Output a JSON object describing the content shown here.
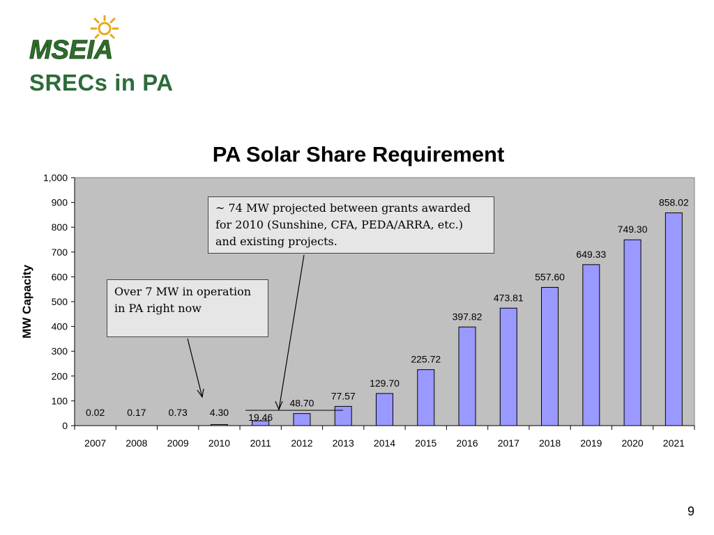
{
  "slide": {
    "logo_text": "MSEIA",
    "title": "SRECs in PA",
    "page_number": "9",
    "colors": {
      "title_green": "#2e6b3a",
      "logo_green": "#2f6e2b",
      "sun_gold": "#e8a81c",
      "bar_fill": "#9999ff",
      "plot_bg": "#c0c0c0"
    }
  },
  "callouts": {
    "top": "~ 74 MW projected between grants awarded for 2010 (Sunshine, CFA, PEDA/ARRA, etc.) and existing projects.",
    "left": "Over  7 MW in operation in PA right now"
  },
  "chart_data": {
    "type": "bar",
    "title": "PA Solar Share Requirement",
    "xlabel": "",
    "ylabel": "MW Capacity",
    "categories": [
      "2007",
      "2008",
      "2009",
      "2010",
      "2011",
      "2012",
      "2013",
      "2014",
      "2015",
      "2016",
      "2017",
      "2018",
      "2019",
      "2020",
      "2021"
    ],
    "values": [
      0.02,
      0.17,
      0.73,
      4.3,
      19.46,
      48.7,
      77.57,
      129.7,
      225.72,
      397.82,
      473.81,
      557.6,
      649.33,
      749.3,
      858.02
    ],
    "value_labels": [
      "0.02",
      "0.17",
      "0.73",
      "4.30",
      "19.46",
      "48.70",
      "77.57",
      "129.70",
      "225.72",
      "397.82",
      "473.81",
      "557.60",
      "649.33",
      "749.30",
      "858.02"
    ],
    "ylim": [
      0,
      1000
    ],
    "yticks": [
      "0",
      "100",
      "200",
      "300",
      "400",
      "500",
      "600",
      "700",
      "800",
      "900",
      "1,000"
    ],
    "grid": false,
    "legend": "none"
  }
}
